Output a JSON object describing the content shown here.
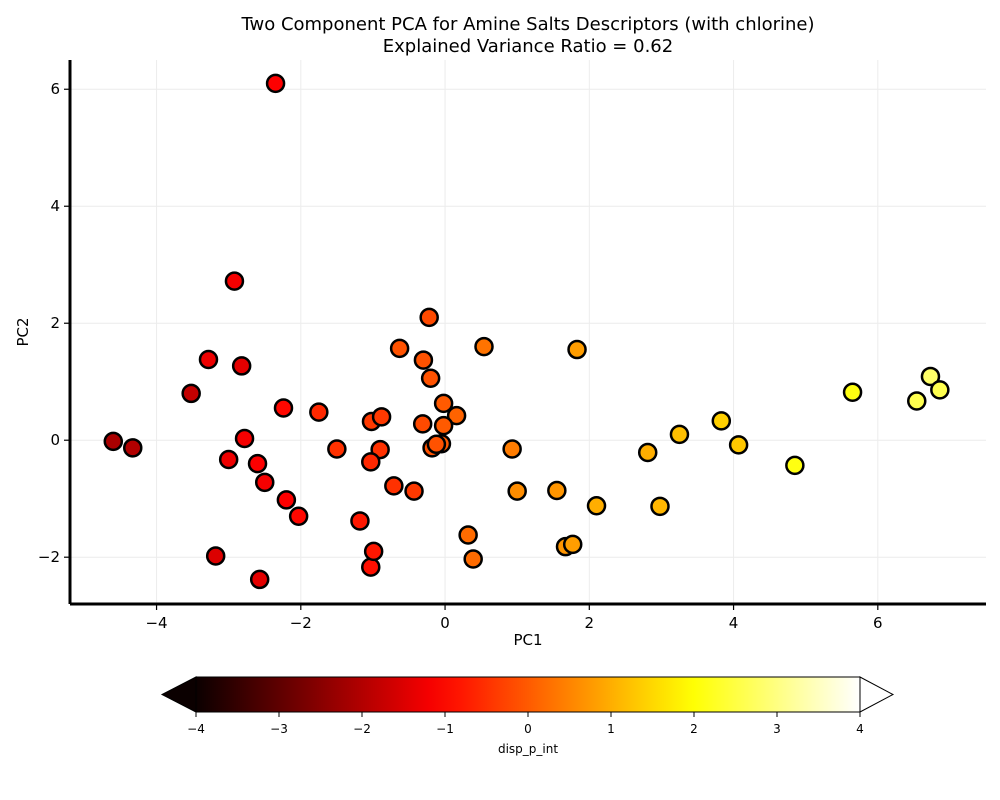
{
  "chart_data": {
    "type": "scatter",
    "title_line1": "Two Component PCA for Amine Salts Descriptors (with chlorine)",
    "title_line2": "Explained Variance Ratio = 0.62",
    "xlabel": "PC1",
    "ylabel": "PC2",
    "xlim": [
      -5.2,
      7.5
    ],
    "ylim": [
      -2.8,
      6.5
    ],
    "xticks": [
      -4,
      -2,
      0,
      2,
      4,
      6
    ],
    "yticks": [
      -2,
      0,
      2,
      4,
      6
    ],
    "xtick_labels": [
      "−4",
      "−2",
      "0",
      "2",
      "4",
      "6"
    ],
    "ytick_labels": [
      "−2",
      "0",
      "2",
      "4",
      "6"
    ],
    "grid": true,
    "colormap": "hot",
    "point_edge_color": "#000000",
    "colorbar": {
      "label": "disp_p_int",
      "range": [
        -4,
        4
      ],
      "ticks": [
        -4,
        -3,
        -2,
        -1,
        0,
        1,
        2,
        3,
        4
      ],
      "tick_labels": [
        "−4",
        "−3",
        "−2",
        "−1",
        "0",
        "1",
        "2",
        "3",
        "4"
      ],
      "extend": "both",
      "orientation": "horizontal"
    },
    "points": [
      {
        "x": -2.35,
        "y": 6.1,
        "c": -1.1
      },
      {
        "x": -2.92,
        "y": 2.72,
        "c": -1.2
      },
      {
        "x": -3.28,
        "y": 1.38,
        "c": -1.3
      },
      {
        "x": -2.82,
        "y": 1.27,
        "c": -1.4
      },
      {
        "x": -3.52,
        "y": 0.8,
        "c": -1.8
      },
      {
        "x": -4.6,
        "y": -0.02,
        "c": -2.1
      },
      {
        "x": -4.33,
        "y": -0.13,
        "c": -2.0
      },
      {
        "x": -2.78,
        "y": 0.03,
        "c": -1.2
      },
      {
        "x": -3.0,
        "y": -0.33,
        "c": -1.3
      },
      {
        "x": -2.6,
        "y": -0.4,
        "c": -1.1
      },
      {
        "x": -2.5,
        "y": -0.72,
        "c": -1.2
      },
      {
        "x": -2.24,
        "y": 0.55,
        "c": -1.0
      },
      {
        "x": -2.2,
        "y": -1.02,
        "c": -1.1
      },
      {
        "x": -2.03,
        "y": -1.3,
        "c": -1.0
      },
      {
        "x": -3.18,
        "y": -1.98,
        "c": -1.5
      },
      {
        "x": -2.57,
        "y": -2.38,
        "c": -1.4
      },
      {
        "x": -1.75,
        "y": 0.48,
        "c": -0.6
      },
      {
        "x": -1.5,
        "y": -0.15,
        "c": -0.5
      },
      {
        "x": -1.18,
        "y": -1.38,
        "c": -0.8
      },
      {
        "x": -1.03,
        "y": -2.17,
        "c": -0.9
      },
      {
        "x": -0.99,
        "y": -1.9,
        "c": -0.8
      },
      {
        "x": -1.02,
        "y": 0.32,
        "c": -0.4
      },
      {
        "x": -0.88,
        "y": 0.4,
        "c": -0.4
      },
      {
        "x": -0.9,
        "y": -0.16,
        "c": -0.5
      },
      {
        "x": -1.03,
        "y": -0.37,
        "c": -0.6
      },
      {
        "x": -0.71,
        "y": -0.78,
        "c": -0.5
      },
      {
        "x": -0.43,
        "y": -0.87,
        "c": -0.4
      },
      {
        "x": -0.63,
        "y": 1.57,
        "c": -0.1
      },
      {
        "x": -0.3,
        "y": 1.37,
        "c": -0.1
      },
      {
        "x": -0.22,
        "y": 2.1,
        "c": -0.2
      },
      {
        "x": -0.2,
        "y": 1.06,
        "c": -0.1
      },
      {
        "x": -0.31,
        "y": 0.28,
        "c": -0.2
      },
      {
        "x": -0.02,
        "y": 0.63,
        "c": 0.0
      },
      {
        "x": 0.16,
        "y": 0.42,
        "c": 0.1
      },
      {
        "x": -0.02,
        "y": 0.25,
        "c": 0.0
      },
      {
        "x": -0.18,
        "y": -0.13,
        "c": -0.1
      },
      {
        "x": -0.05,
        "y": -0.06,
        "c": 0.0
      },
      {
        "x": -0.12,
        "y": -0.07,
        "c": -0.1
      },
      {
        "x": 0.54,
        "y": 1.6,
        "c": 0.3
      },
      {
        "x": 0.32,
        "y": -1.62,
        "c": 0.2
      },
      {
        "x": 0.39,
        "y": -2.03,
        "c": 0.2
      },
      {
        "x": 0.93,
        "y": -0.15,
        "c": 0.4
      },
      {
        "x": 1.0,
        "y": -0.87,
        "c": 0.6
      },
      {
        "x": 1.55,
        "y": -0.86,
        "c": 0.7
      },
      {
        "x": 1.83,
        "y": 1.55,
        "c": 0.8
      },
      {
        "x": 1.67,
        "y": -1.82,
        "c": 0.7
      },
      {
        "x": 1.77,
        "y": -1.78,
        "c": 0.8
      },
      {
        "x": 2.1,
        "y": -1.12,
        "c": 1.0
      },
      {
        "x": 2.81,
        "y": -0.21,
        "c": 1.0
      },
      {
        "x": 2.98,
        "y": -1.13,
        "c": 1.1
      },
      {
        "x": 3.25,
        "y": 0.1,
        "c": 1.2
      },
      {
        "x": 3.83,
        "y": 0.33,
        "c": 1.4
      },
      {
        "x": 4.07,
        "y": -0.08,
        "c": 1.3
      },
      {
        "x": 4.85,
        "y": -0.43,
        "c": 2.1
      },
      {
        "x": 5.65,
        "y": 0.82,
        "c": 2.1
      },
      {
        "x": 6.54,
        "y": 0.67,
        "c": 2.6
      },
      {
        "x": 6.73,
        "y": 1.09,
        "c": 2.8
      },
      {
        "x": 6.86,
        "y": 0.86,
        "c": 2.6
      }
    ]
  }
}
